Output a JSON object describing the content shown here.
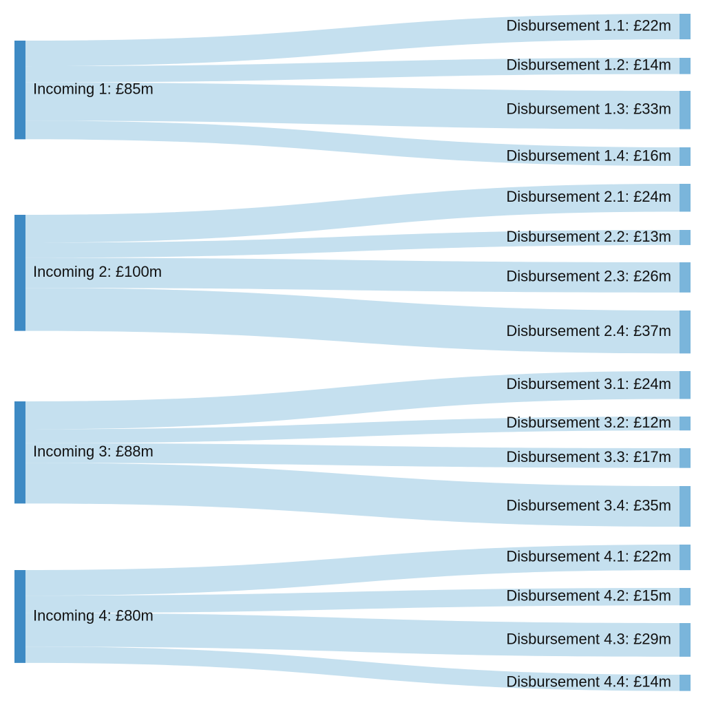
{
  "colors": {
    "source_node": "#3e8ac4",
    "target_node": "#7ab5db",
    "link": "#c5e0ef",
    "label": "#111111"
  },
  "sources": [
    {
      "label": "Incoming 1: £85m",
      "value": 85,
      "targets": [
        {
          "label": "Disbursement 1.1: £22m",
          "value": 22
        },
        {
          "label": "Disbursement 1.2: £14m",
          "value": 14
        },
        {
          "label": "Disbursement 1.3: £33m",
          "value": 33
        },
        {
          "label": "Disbursement 1.4: £16m",
          "value": 16
        }
      ]
    },
    {
      "label": "Incoming 2: £100m",
      "value": 100,
      "targets": [
        {
          "label": "Disbursement 2.1: £24m",
          "value": 24
        },
        {
          "label": "Disbursement 2.2: £13m",
          "value": 13
        },
        {
          "label": "Disbursement 2.3: £26m",
          "value": 26
        },
        {
          "label": "Disbursement 2.4: £37m",
          "value": 37
        }
      ]
    },
    {
      "label": "Incoming 3: £88m",
      "value": 88,
      "targets": [
        {
          "label": "Disbursement 3.1: £24m",
          "value": 24
        },
        {
          "label": "Disbursement 3.2: £12m",
          "value": 12
        },
        {
          "label": "Disbursement 3.3: £17m",
          "value": 17
        },
        {
          "label": "Disbursement 3.4: £35m",
          "value": 35
        }
      ]
    },
    {
      "label": "Incoming 4: £80m",
      "value": 80,
      "targets": [
        {
          "label": "Disbursement 4.1: £22m",
          "value": 22
        },
        {
          "label": "Disbursement 4.2: £15m",
          "value": 15
        },
        {
          "label": "Disbursement 4.3: £29m",
          "value": 29
        },
        {
          "label": "Disbursement 4.4: £14m",
          "value": 14
        }
      ]
    }
  ]
}
